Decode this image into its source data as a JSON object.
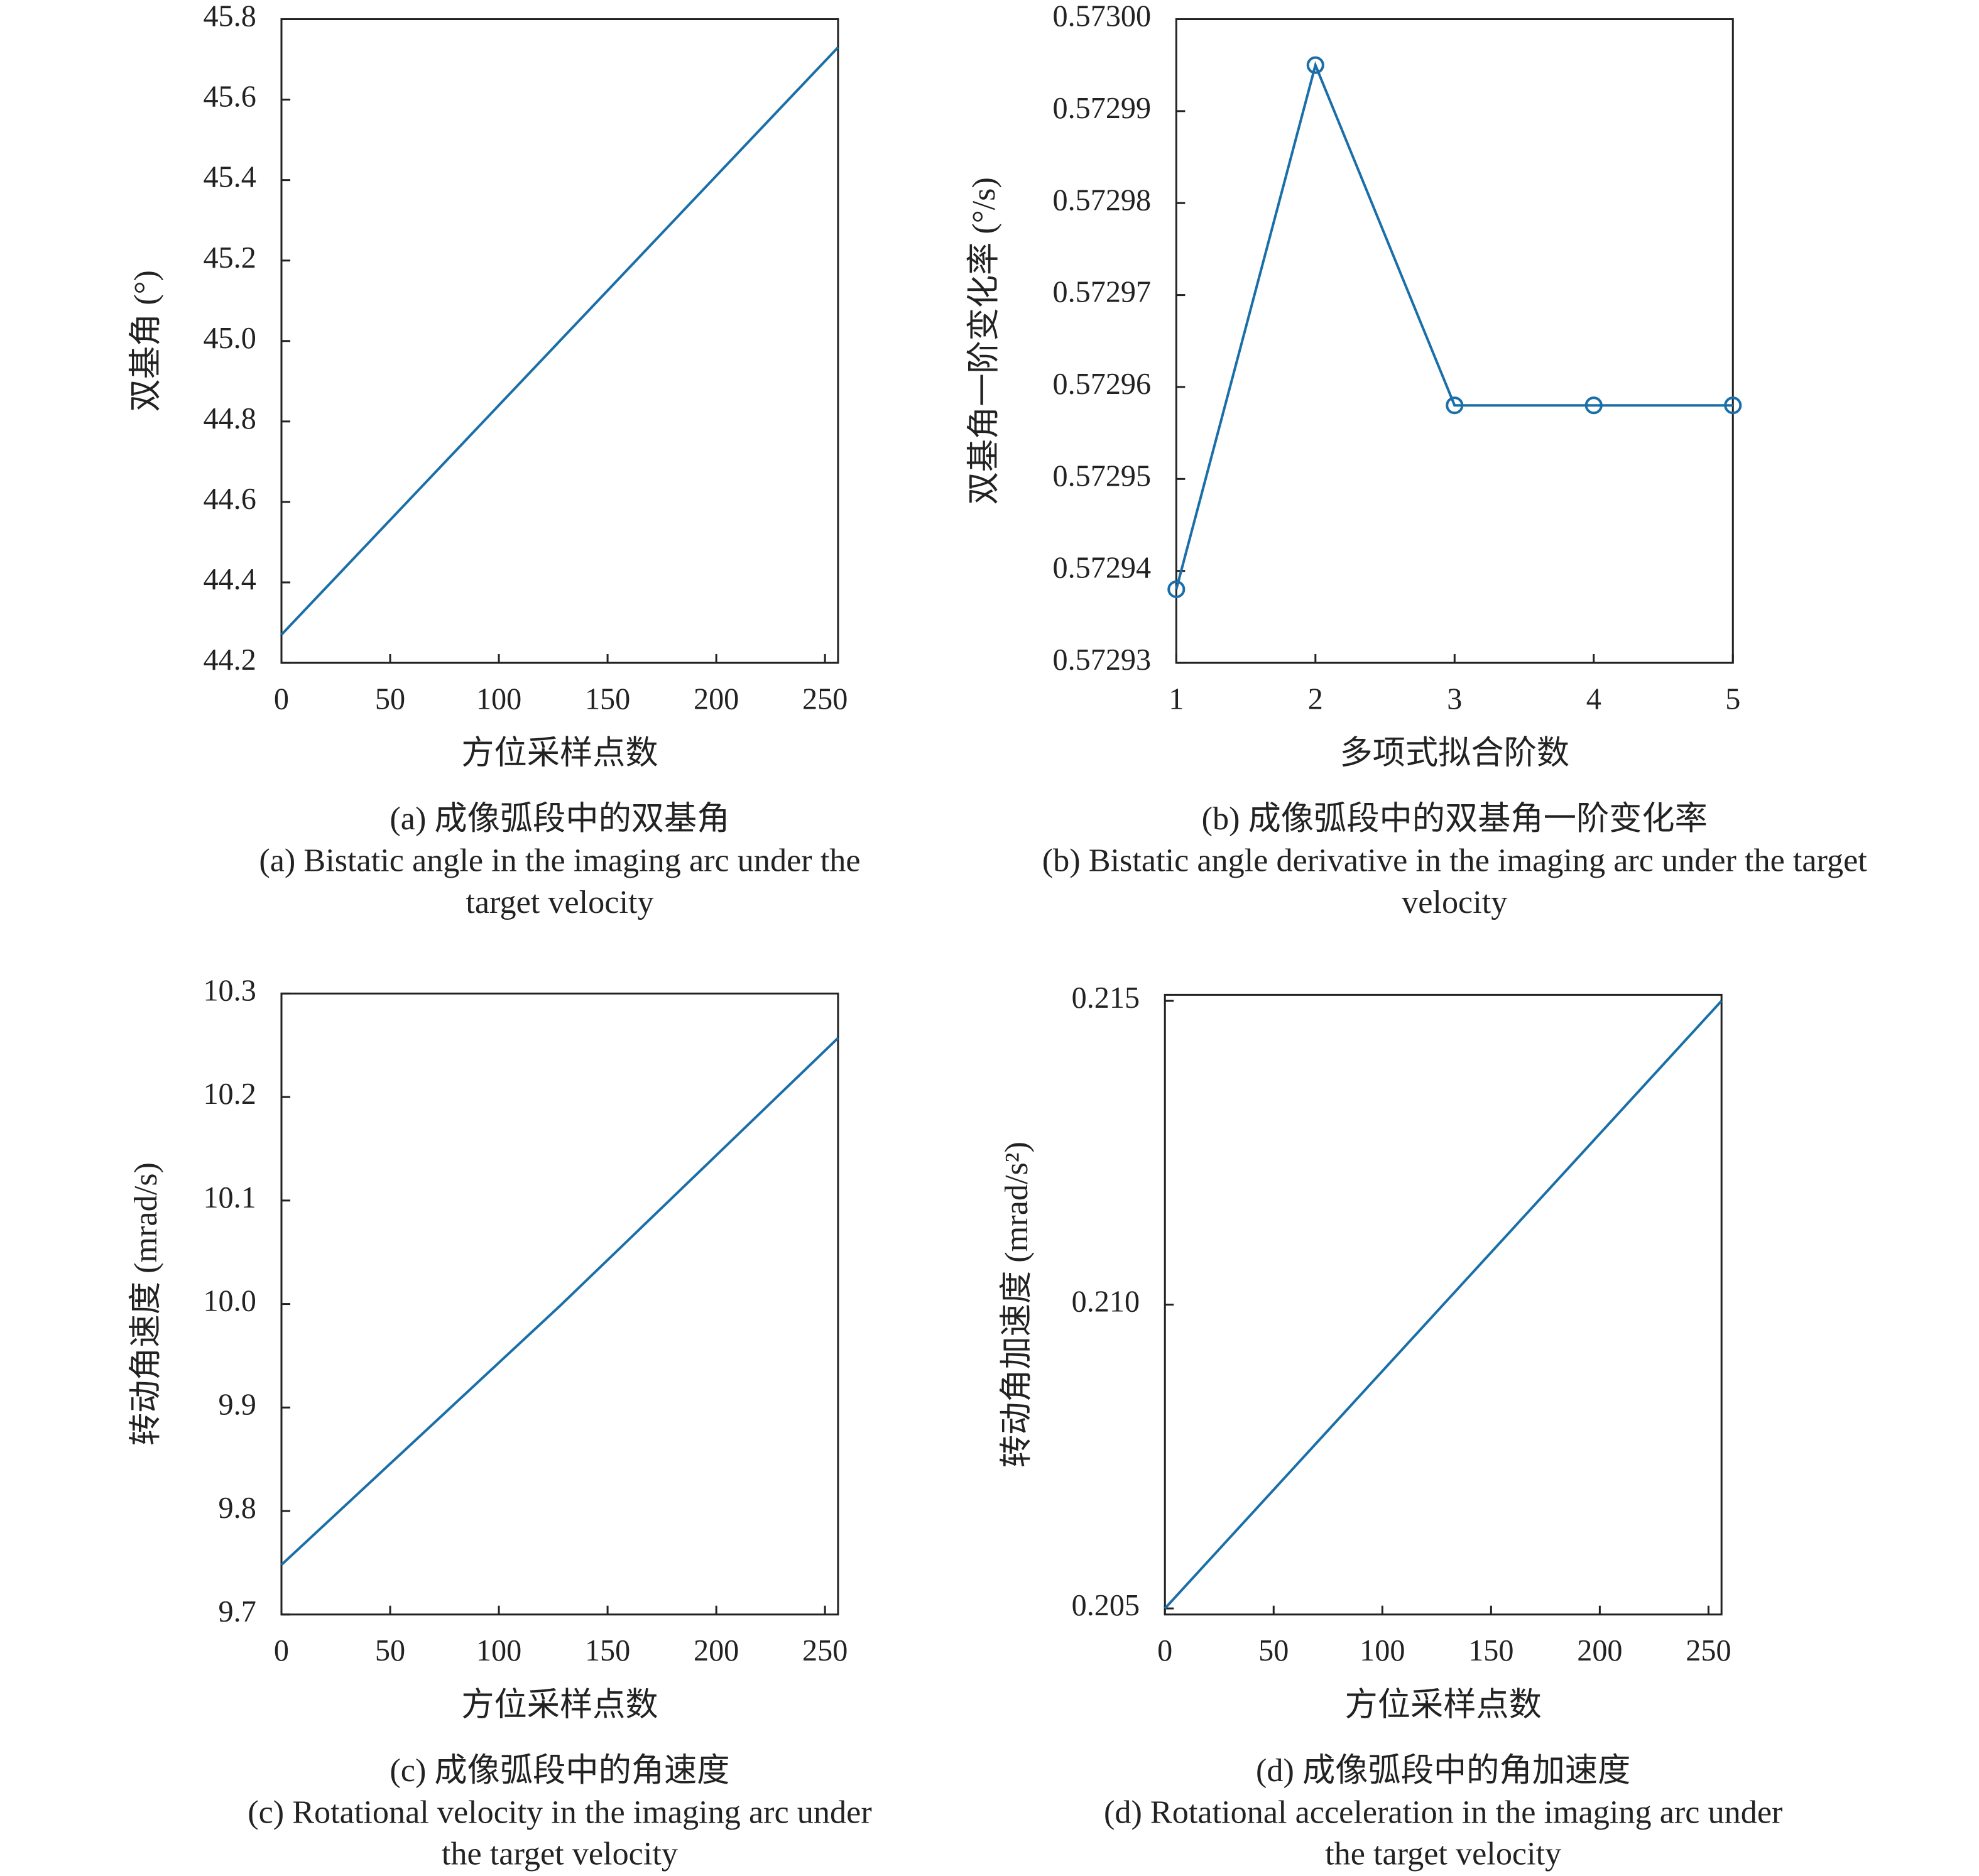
{
  "chart_data": [
    {
      "type": "line",
      "title": "(a) 成像弧段中的双基角",
      "subtitle": "(a) Bistatic angle in the imaging arc under the target velocity",
      "x_label": "方位采样点数",
      "y_label": "双基角 (°)",
      "x": [
        0,
        256
      ],
      "series": [
        {
          "color": "#1a6fa8",
          "values": [
            44.27,
            45.73
          ]
        }
      ],
      "xlim": [
        0,
        256
      ],
      "xticks": [
        0,
        50,
        100,
        150,
        200,
        250
      ],
      "ylim": [
        44.2,
        45.8
      ],
      "yticks": [
        44.2,
        44.4,
        44.6,
        44.8,
        {
          "value": 45,
          "label": "45.0"
        },
        45.2,
        45.4,
        45.6,
        45.8
      ]
    },
    {
      "type": "line",
      "title": "(b) 成像弧段中的双基角一阶变化率",
      "subtitle": "(b) Bistatic angle derivative in the imaging arc under the target velocity",
      "x_label": "多项式拟合阶数",
      "y_label": "双基角一阶变化率 (°/s)",
      "markers": true,
      "x": [
        1,
        2,
        3,
        4,
        5
      ],
      "series": [
        {
          "color": "#1a6fa8",
          "values": [
            0.572938,
            0.572995,
            0.572958,
            0.572958,
            0.572958
          ]
        }
      ],
      "xlim": [
        1,
        5
      ],
      "xticks": [
        1,
        2,
        3,
        4,
        5
      ],
      "ylim": [
        0.57293,
        0.573
      ],
      "yticks": [
        0.57293,
        0.57294,
        0.57295,
        0.57296,
        0.57297,
        0.57298,
        0.57299,
        {
          "value": 0.573,
          "label": "0.57300"
        }
      ]
    },
    {
      "type": "line",
      "title": "(c) 成像弧段中的角速度",
      "subtitle": "(c) Rotational velocity in the imaging arc under the target velocity",
      "x_label": "方位采样点数",
      "y_label": "转动角速度 (mrad/s)",
      "x": [
        0,
        128,
        256
      ],
      "series": [
        {
          "color": "#1a6fa8",
          "values": [
            9.748,
            9.998,
            10.257
          ]
        }
      ],
      "xlim": [
        0,
        256
      ],
      "xticks": [
        0,
        50,
        100,
        150,
        200,
        250
      ],
      "ylim": [
        9.7,
        10.3
      ],
      "yticks": [
        9.7,
        9.8,
        9.9,
        {
          "value": 10,
          "label": "10.0"
        },
        10.1,
        10.2,
        10.3
      ]
    },
    {
      "type": "line",
      "title": "(d) 成像弧段中的角加速度",
      "subtitle": "(d) Rotational acceleration in the imaging arc under the target velocity",
      "x_label": "方位采样点数",
      "y_label": "转动角加速度 (mrad/s²)",
      "x": [
        0,
        256
      ],
      "series": [
        {
          "color": "#1a6fa8",
          "values": [
            0.205,
            0.215
          ]
        }
      ],
      "xlim": [
        0,
        256
      ],
      "xticks": [
        0,
        50,
        100,
        150,
        200,
        250
      ],
      "ylim": [
        0.2049,
        0.2151
      ],
      "yticks": [
        0.205,
        {
          "value": 0.21,
          "label": "0.210"
        },
        0.215
      ]
    }
  ]
}
